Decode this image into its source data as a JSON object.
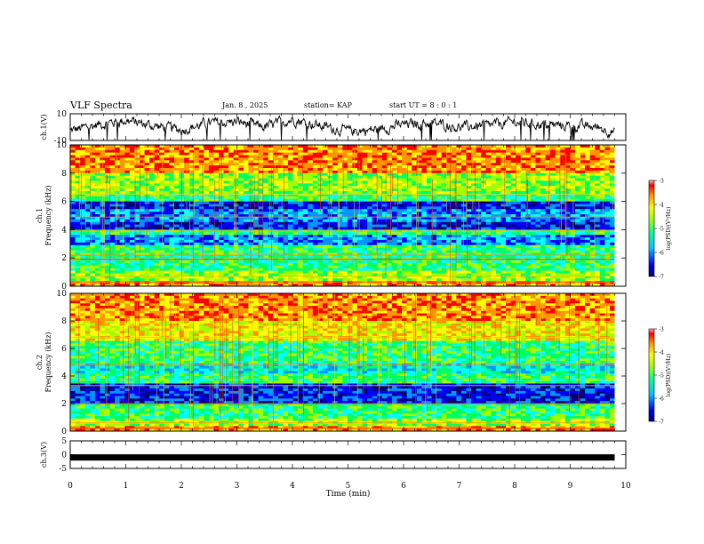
{
  "header": {
    "title": "VLF Spectra",
    "date": "Jan. 8 , 2025",
    "station": "station= KAP",
    "start_ut": "start UT = 8 : 0 : 1"
  },
  "colors": {
    "colormap": [
      "#00007a",
      "#0000ff",
      "#0096ff",
      "#00ffff",
      "#00ff64",
      "#a0ff00",
      "#ffff00",
      "#ff9600",
      "#ff0000",
      "#ffb4b4"
    ]
  },
  "chart_data": [
    {
      "type": "line",
      "name": "ch1-waveform",
      "ylabel": "ch.1(V)",
      "ylim": [
        -10,
        10
      ],
      "yticks": [
        "10",
        "-10"
      ],
      "xlim": [
        0,
        10
      ],
      "note_shape": "noisy waveform mostly between -5 and 10 V",
      "x": [
        0,
        0.5,
        1,
        1.5,
        2,
        2.5,
        3,
        3.5,
        4,
        4.5,
        5,
        5.5,
        6,
        6.5,
        7,
        7.5,
        8,
        8.5,
        9,
        9.5,
        9.8
      ],
      "values": [
        -3,
        2,
        5,
        1,
        -2,
        3,
        4,
        0,
        6,
        1,
        -3,
        -2,
        2,
        3,
        0,
        1,
        4,
        2,
        1,
        0,
        -4
      ]
    },
    {
      "type": "heatmap",
      "name": "ch1-spectrogram",
      "ylabel": "ch.1\nFrequency (kHz)",
      "ylim": [
        0,
        10
      ],
      "yticks": [
        "0",
        "2",
        "4",
        "6",
        "8",
        "10"
      ],
      "xlim": [
        0,
        10
      ],
      "colorbar": {
        "label": "log(PSD)(V²/Hz)",
        "ticks": [
          "-3",
          "-4",
          "-5",
          "-6",
          "-7"
        ],
        "range": [
          -7,
          -3
        ]
      }
    },
    {
      "type": "heatmap",
      "name": "ch2-spectrogram",
      "ylabel": "ch.2\nFrequency (kHz)",
      "ylim": [
        0,
        10
      ],
      "yticks": [
        "0",
        "2",
        "4",
        "6",
        "8",
        "10"
      ],
      "xlim": [
        0,
        10
      ],
      "colorbar": {
        "label": "log(PSD)(V²/Hz)",
        "ticks": [
          "-3",
          "-4",
          "-5",
          "-6",
          "-7"
        ],
        "range": [
          -7,
          -3
        ]
      }
    },
    {
      "type": "line",
      "name": "ch3-waveform",
      "ylabel": "ch.3(V)",
      "ylim": [
        -5,
        5
      ],
      "yticks": [
        "5",
        "0",
        "-5"
      ],
      "xlim": [
        0,
        10
      ],
      "x": [
        0,
        9.8
      ],
      "values": [
        -1,
        -1
      ]
    }
  ],
  "xaxis": {
    "label": "Time (min)",
    "ticks": [
      "0",
      "1",
      "2",
      "3",
      "4",
      "5",
      "6",
      "7",
      "8",
      "9",
      "10"
    ]
  }
}
